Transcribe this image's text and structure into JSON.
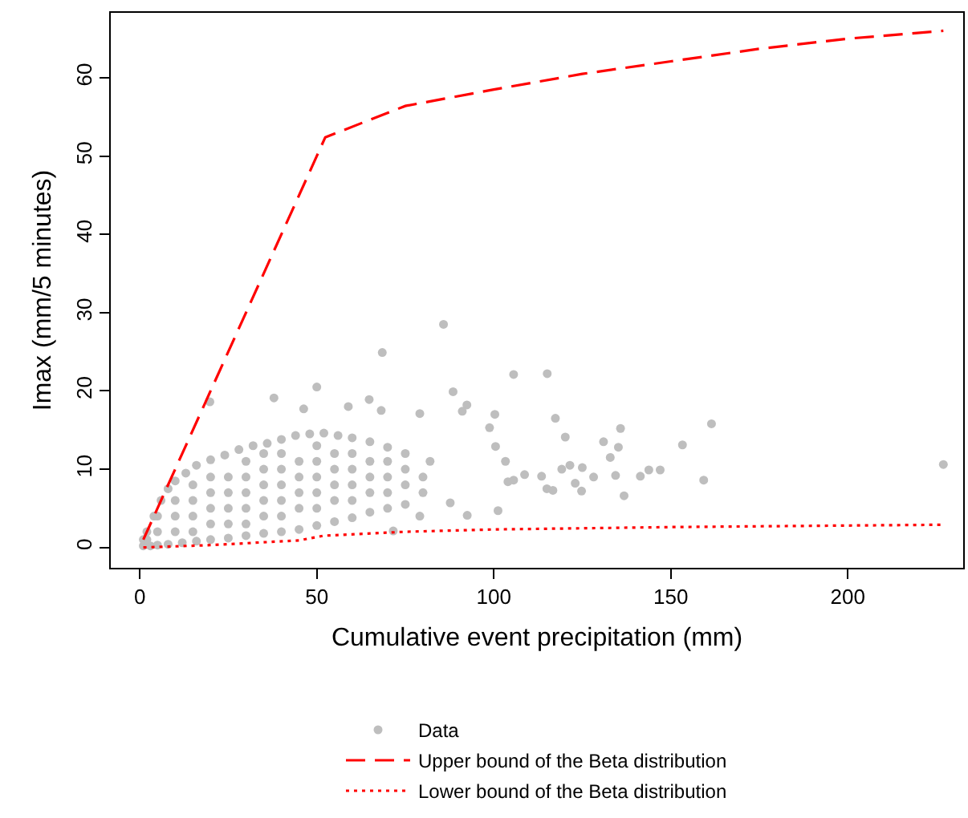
{
  "chart_data": {
    "type": "scatter",
    "xlabel": "Cumulative event precipitation (mm)",
    "ylabel": "Imax (mm/5 minutes)",
    "xlim": [
      -8.2,
      232.6
    ],
    "ylim": [
      -2.6,
      68.3
    ],
    "xticks": [
      0,
      50,
      100,
      150,
      200
    ],
    "yticks": [
      0,
      10,
      20,
      30,
      40,
      50,
      60
    ],
    "grid": false,
    "legend": "bottom",
    "series": [
      {
        "type": "scatter",
        "name": "Data",
        "color": "#bebebe",
        "marker": "circle",
        "x": [
          85.8,
          68.5,
          105.6,
          115.1,
          37.9,
          19.8,
          50,
          161.5,
          153.3,
          135.8,
          131,
          135.2,
          132.9,
          227,
          147,
          143.8,
          141.4,
          159.3,
          136.8,
          134.4,
          128.2,
          124.8,
          123,
          125,
          121.5,
          119.2,
          120.2,
          117.4,
          116.7,
          115,
          113.5,
          108.7,
          105.6,
          104,
          103.3,
          101.2,
          100.5,
          98.8,
          100.3,
          92.4,
          88.5,
          91.1,
          92.5,
          87.7,
          79.1,
          71.6,
          79.1,
          68.2,
          64.8,
          58.9,
          46.3,
          1,
          3,
          5,
          8,
          12,
          16,
          20,
          25,
          30,
          35,
          40,
          45,
          50,
          55,
          60,
          65,
          70,
          75,
          2,
          4,
          6,
          8,
          10,
          13,
          16,
          20,
          24,
          28,
          32,
          36,
          40,
          44,
          48,
          52,
          56,
          60,
          65,
          70,
          75,
          5,
          5,
          10,
          10,
          10,
          15,
          15,
          15,
          15,
          20,
          20,
          20,
          20,
          25,
          25,
          25,
          25,
          30,
          30,
          30,
          30,
          30,
          35,
          35,
          35,
          35,
          35,
          40,
          40,
          40,
          40,
          40,
          45,
          45,
          45,
          45,
          50,
          50,
          50,
          50,
          50,
          55,
          55,
          55,
          55,
          60,
          60,
          60,
          60,
          65,
          65,
          65,
          70,
          70,
          70,
          75,
          75,
          80,
          80,
          82,
          1,
          2
        ],
        "values": [
          28.5,
          24.9,
          22.1,
          22.2,
          19.1,
          18.6,
          20.5,
          15.8,
          13.1,
          15.2,
          13.5,
          12.8,
          11.5,
          10.6,
          9.9,
          9.9,
          9.1,
          8.6,
          6.6,
          9.2,
          9.0,
          7.2,
          8.2,
          10.2,
          10.5,
          10.0,
          14.1,
          16.5,
          7.3,
          7.5,
          9.1,
          9.3,
          8.6,
          8.4,
          11.0,
          4.7,
          12.9,
          15.3,
          17.0,
          18.2,
          19.9,
          17.4,
          4.1,
          5.7,
          4.0,
          2.1,
          17.1,
          17.5,
          18.9,
          18.0,
          17.7,
          0.2,
          0.2,
          0.3,
          0.4,
          0.6,
          0.8,
          1.0,
          1.2,
          1.5,
          1.8,
          2.0,
          2.3,
          2.8,
          3.3,
          3.8,
          4.5,
          5.0,
          5.5,
          2,
          4,
          6,
          7.5,
          8.5,
          9.5,
          10.5,
          11.2,
          11.8,
          12.5,
          13.0,
          13.3,
          13.8,
          14.3,
          14.5,
          14.6,
          14.3,
          14.0,
          13.5,
          12.8,
          12.0,
          2,
          4,
          2,
          4,
          6,
          2,
          4,
          6,
          8,
          3,
          5,
          7,
          9,
          3,
          5,
          7,
          9,
          3,
          5,
          7,
          9,
          11,
          4,
          6,
          8,
          10,
          12,
          4,
          6,
          8,
          10,
          12,
          5,
          7,
          9,
          11,
          5,
          7,
          9,
          11,
          13,
          6,
          8,
          10,
          12,
          6,
          8,
          10,
          12,
          7,
          9,
          11,
          7,
          9,
          11,
          8,
          10,
          9,
          7,
          11,
          1,
          1
        ]
      },
      {
        "type": "line",
        "name": "Upper bound of the Beta distribution",
        "color": "#ff0000",
        "line_style": "dashed",
        "x": [
          1,
          52.4,
          75,
          100,
          125,
          150,
          175,
          200,
          227
        ],
        "values": [
          1,
          52.4,
          56.4,
          58.5,
          60.5,
          62.1,
          63.7,
          65.0,
          66.0
        ]
      },
      {
        "type": "line",
        "name": "Lower bound of the Beta distribution",
        "color": "#ff0000",
        "line_style": "dotted",
        "x": [
          1,
          20,
          45,
          52,
          75,
          100,
          150,
          200,
          227
        ],
        "values": [
          0,
          0.3,
          0.9,
          1.5,
          2.0,
          2.3,
          2.6,
          2.8,
          2.9
        ]
      }
    ]
  }
}
